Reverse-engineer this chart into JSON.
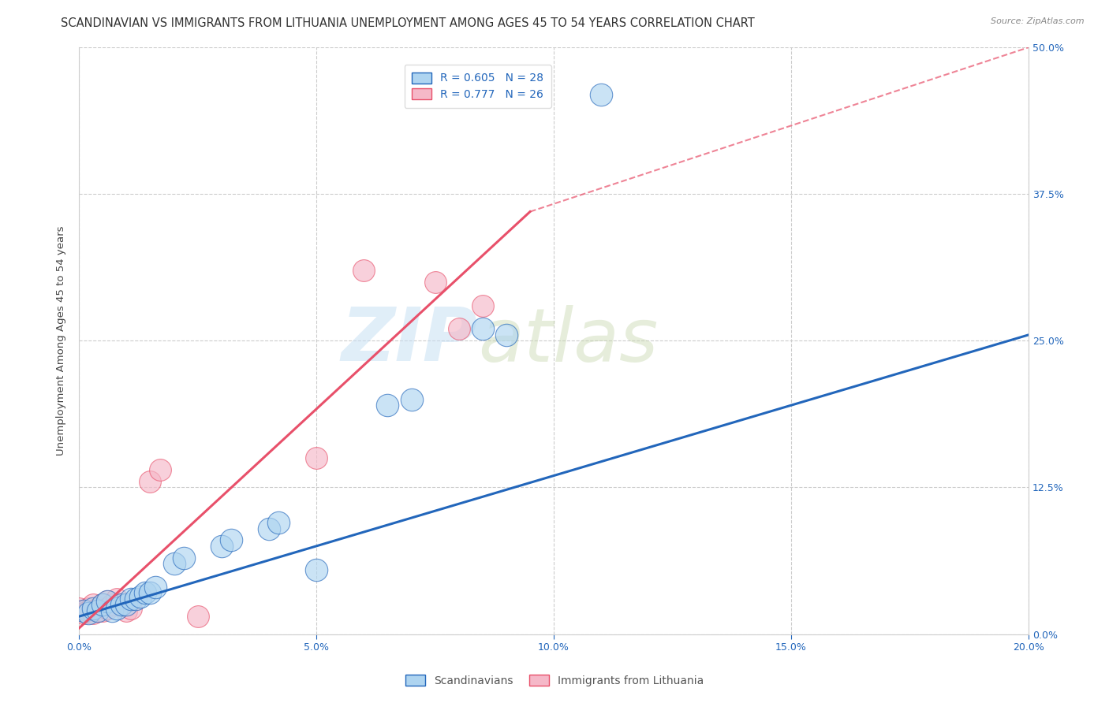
{
  "title": "SCANDINAVIAN VS IMMIGRANTS FROM LITHUANIA UNEMPLOYMENT AMONG AGES 45 TO 54 YEARS CORRELATION CHART",
  "source": "Source: ZipAtlas.com",
  "ylabel": "Unemployment Among Ages 45 to 54 years",
  "xlabel_ticks": [
    "0.0%",
    "",
    "",
    "",
    "",
    "5.0%",
    "",
    "",
    "",
    "",
    "10.0%",
    "",
    "",
    "",
    "",
    "15.0%",
    "",
    "",
    "",
    "",
    "20.0%"
  ],
  "ylabel_ticks_vals": [
    0.0,
    0.125,
    0.25,
    0.375,
    0.5
  ],
  "ylabel_ticks_labels": [
    "0.0%",
    "12.5%",
    "25.0%",
    "37.5%",
    "50.0%"
  ],
  "xlim": [
    0.0,
    0.2
  ],
  "ylim": [
    0.0,
    0.5
  ],
  "legend_r1": "R = 0.605",
  "legend_n1": "N = 28",
  "legend_r2": "R = 0.777",
  "legend_n2": "N = 26",
  "legend_label1": "Scandinavians",
  "legend_label2": "Immigrants from Lithuania",
  "blue_color": "#aaccee",
  "pink_color": "#f7b8c4",
  "blue_scatter_fill": "#aed4f0",
  "pink_scatter_fill": "#f5b8c8",
  "blue_line_color": "#2266bb",
  "pink_line_color": "#e8506a",
  "blue_scatter": [
    [
      0.001,
      0.02
    ],
    [
      0.002,
      0.018
    ],
    [
      0.003,
      0.022
    ],
    [
      0.004,
      0.02
    ],
    [
      0.005,
      0.025
    ],
    [
      0.006,
      0.028
    ],
    [
      0.007,
      0.02
    ],
    [
      0.008,
      0.022
    ],
    [
      0.009,
      0.025
    ],
    [
      0.01,
      0.025
    ],
    [
      0.011,
      0.03
    ],
    [
      0.012,
      0.03
    ],
    [
      0.013,
      0.032
    ],
    [
      0.014,
      0.035
    ],
    [
      0.015,
      0.035
    ],
    [
      0.016,
      0.04
    ],
    [
      0.02,
      0.06
    ],
    [
      0.022,
      0.065
    ],
    [
      0.03,
      0.075
    ],
    [
      0.032,
      0.08
    ],
    [
      0.04,
      0.09
    ],
    [
      0.042,
      0.095
    ],
    [
      0.05,
      0.055
    ],
    [
      0.065,
      0.195
    ],
    [
      0.07,
      0.2
    ],
    [
      0.085,
      0.26
    ],
    [
      0.09,
      0.255
    ],
    [
      0.11,
      0.46
    ]
  ],
  "pink_scatter": [
    [
      0.0,
      0.022
    ],
    [
      0.001,
      0.02
    ],
    [
      0.001,
      0.018
    ],
    [
      0.002,
      0.022
    ],
    [
      0.002,
      0.02
    ],
    [
      0.003,
      0.025
    ],
    [
      0.003,
      0.018
    ],
    [
      0.004,
      0.022
    ],
    [
      0.004,
      0.02
    ],
    [
      0.005,
      0.025
    ],
    [
      0.005,
      0.02
    ],
    [
      0.006,
      0.028
    ],
    [
      0.006,
      0.022
    ],
    [
      0.007,
      0.025
    ],
    [
      0.008,
      0.03
    ],
    [
      0.009,
      0.025
    ],
    [
      0.01,
      0.02
    ],
    [
      0.011,
      0.022
    ],
    [
      0.015,
      0.13
    ],
    [
      0.017,
      0.14
    ],
    [
      0.025,
      0.015
    ],
    [
      0.05,
      0.15
    ],
    [
      0.06,
      0.31
    ],
    [
      0.075,
      0.3
    ],
    [
      0.08,
      0.26
    ],
    [
      0.085,
      0.28
    ]
  ],
  "blue_line": [
    [
      0.0,
      0.015
    ],
    [
      0.2,
      0.255
    ]
  ],
  "pink_line_solid": [
    [
      0.0,
      0.005
    ],
    [
      0.095,
      0.36
    ]
  ],
  "pink_line_dashed": [
    [
      0.095,
      0.36
    ],
    [
      0.2,
      0.5
    ]
  ],
  "background_color": "#ffffff",
  "grid_color": "#cccccc",
  "watermark_zip": "ZIP",
  "watermark_atlas": "atlas",
  "title_fontsize": 10.5,
  "axis_label_fontsize": 9.5,
  "tick_fontsize": 9,
  "legend_fontsize": 10
}
